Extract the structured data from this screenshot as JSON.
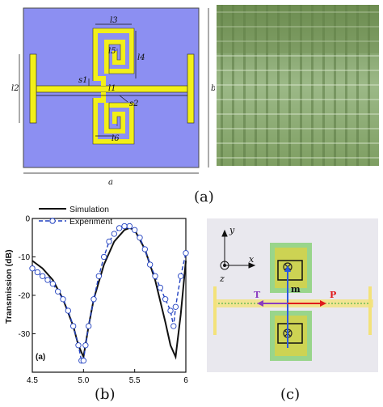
{
  "figure": {
    "panel_a_label": "(a)",
    "panel_b_label": "(b)",
    "panel_c_label": "(c)"
  },
  "unit_cell": {
    "dim_labels": [
      "l3",
      "l5",
      "l4",
      "s1",
      "l2",
      "l1",
      "s2",
      "b",
      "l6",
      "a"
    ],
    "colors": {
      "substrate": "#8c8ff2",
      "metal": "#f2ef18",
      "outline": "#444"
    }
  },
  "photo": {
    "description_colors": {
      "base": "#8fb06f",
      "strip": "#6a8a4a"
    }
  },
  "chart_data": {
    "type": "line",
    "panel_tag": "(a)",
    "xlabel": "",
    "ylabel": "Transmission (dB)",
    "xlim": [
      4.5,
      6.0
    ],
    "ylim": [
      -40,
      0
    ],
    "xticks": [
      "4.5",
      "5.0",
      "5.5",
      "6"
    ],
    "yticks": [
      "0",
      "-10",
      "-20",
      "-30"
    ],
    "legend": [
      "Simulation",
      "Experiment"
    ],
    "legend_position": "top-left",
    "series": [
      {
        "name": "Simulation",
        "style": "solid-black",
        "x": [
          4.5,
          4.6,
          4.7,
          4.8,
          4.9,
          4.95,
          5.0,
          5.05,
          5.1,
          5.2,
          5.3,
          5.4,
          5.45,
          5.5,
          5.6,
          5.7,
          5.8,
          5.85,
          5.9,
          5.95,
          6.0
        ],
        "y": [
          -11,
          -13,
          -16,
          -21,
          -28,
          -33,
          -36,
          -28,
          -21,
          -12,
          -6,
          -3,
          -2.5,
          -3,
          -8,
          -16,
          -27,
          -33,
          -36,
          -25,
          -11
        ]
      },
      {
        "name": "Experiment",
        "style": "dashed-blue-circles",
        "x": [
          4.5,
          4.55,
          4.6,
          4.65,
          4.7,
          4.75,
          4.8,
          4.85,
          4.9,
          4.95,
          4.98,
          5.0,
          5.02,
          5.05,
          5.1,
          5.15,
          5.2,
          5.25,
          5.3,
          5.35,
          5.4,
          5.45,
          5.5,
          5.55,
          5.6,
          5.65,
          5.7,
          5.75,
          5.8,
          5.85,
          5.88,
          5.9,
          5.95,
          6.0
        ],
        "y": [
          -13,
          -14,
          -15,
          -16,
          -17,
          -19,
          -21,
          -24,
          -28,
          -33,
          -37,
          -37,
          -33,
          -28,
          -21,
          -15,
          -10,
          -6,
          -4,
          -2.5,
          -2,
          -2,
          -3,
          -5,
          -8,
          -12,
          -15,
          -18,
          -21,
          -24,
          -28,
          -23,
          -15,
          -9
        ]
      }
    ]
  },
  "field_map": {
    "axis_labels": {
      "y": "y",
      "x": "x",
      "z": "z"
    },
    "marker_t": "T",
    "marker_p": "P",
    "marker_m": "m",
    "colors": {
      "bg": "#e9e8ee",
      "t_arrow": "#8a3cc0",
      "p_arrow": "#e01b1b",
      "m_arrow": "#2b5ae0"
    }
  }
}
